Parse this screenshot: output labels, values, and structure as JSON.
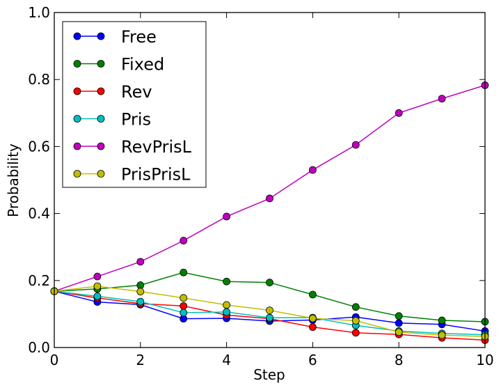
{
  "chart_data": {
    "type": "line",
    "xlabel": "Step",
    "ylabel": "Probability",
    "xlim": [
      0,
      10
    ],
    "ylim": [
      0.0,
      1.0
    ],
    "x": [
      0,
      1,
      2,
      3,
      4,
      5,
      6,
      7,
      8,
      9,
      10
    ],
    "x_ticks": [
      0,
      2,
      4,
      6,
      8,
      10
    ],
    "x_tick_labels": [
      "0",
      "2",
      "4",
      "6",
      "8",
      "10"
    ],
    "y_ticks": [
      0.0,
      0.2,
      0.4,
      0.6,
      0.8,
      1.0
    ],
    "y_tick_labels": [
      "0.0",
      "0.2",
      "0.4",
      "0.6",
      "0.8",
      "1.0"
    ],
    "grid": false,
    "legend_position": "top-left",
    "series": [
      {
        "name": "Free",
        "color": "#0000ff",
        "values": [
          0.168,
          0.136,
          0.128,
          0.086,
          0.087,
          0.079,
          0.082,
          0.091,
          0.073,
          0.069,
          0.049
        ]
      },
      {
        "name": "Fixed",
        "color": "#008000",
        "values": [
          0.168,
          0.175,
          0.186,
          0.224,
          0.197,
          0.194,
          0.158,
          0.121,
          0.094,
          0.081,
          0.077
        ]
      },
      {
        "name": "Rev",
        "color": "#ff0000",
        "values": [
          0.168,
          0.148,
          0.131,
          0.124,
          0.097,
          0.086,
          0.061,
          0.044,
          0.039,
          0.029,
          0.022
        ]
      },
      {
        "name": "Pris",
        "color": "#00bfbf",
        "values": [
          0.168,
          0.153,
          0.137,
          0.104,
          0.106,
          0.089,
          0.089,
          0.066,
          0.049,
          0.042,
          0.038
        ]
      },
      {
        "name": "RevPrisL",
        "color": "#bf00bf",
        "values": [
          0.168,
          0.212,
          0.256,
          0.319,
          0.391,
          0.445,
          0.53,
          0.605,
          0.7,
          0.743,
          0.783
        ]
      },
      {
        "name": "PrisPrisL",
        "color": "#bfbf00",
        "values": [
          0.168,
          0.183,
          0.167,
          0.148,
          0.127,
          0.111,
          0.087,
          0.08,
          0.046,
          0.037,
          0.033
        ]
      }
    ]
  }
}
